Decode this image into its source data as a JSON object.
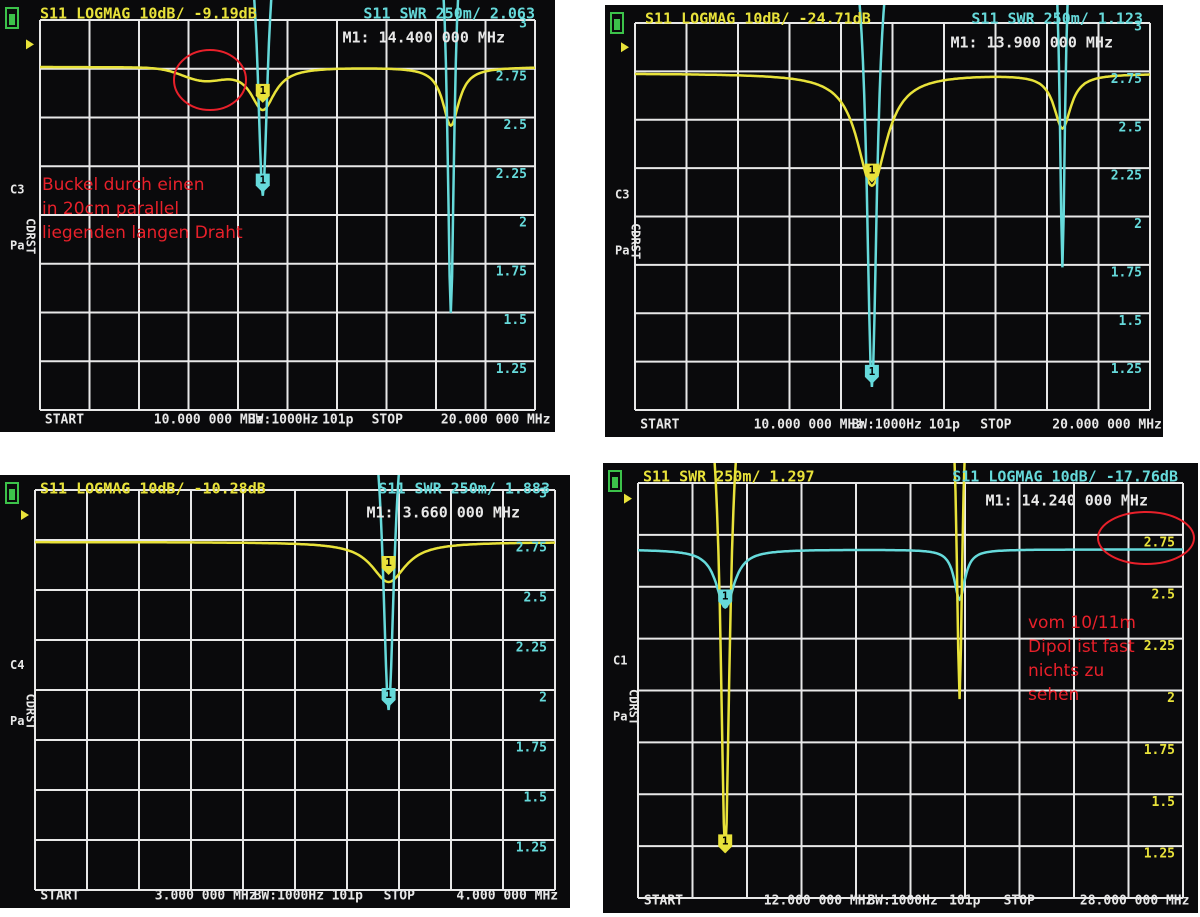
{
  "panels": [
    {
      "header_a": "S11 LOGMAG 10dB/ -9.19dB",
      "header_b": "S11 SWR 250m/ 2.063",
      "marker": "M1: 14.400 000 MHz",
      "scale_ticks": [
        "3",
        "2.75",
        "2.5",
        "2.25",
        "2",
        "1.75",
        "1.5",
        "1.25"
      ],
      "footer": [
        "START",
        "10.000 000 MHz",
        "BW:1000Hz",
        "101p",
        "STOP",
        "20.000 000 MHz"
      ],
      "side": [
        "C3",
        "CDRST",
        "Pa"
      ],
      "marker_tag": "1",
      "annotation": [
        "Buckel durch einen",
        "in 20cm parallel",
        "liegenden langen Draht"
      ]
    },
    {
      "header_a": "S11 LOGMAG 10dB/ -24.71dB",
      "header_b": "S11 SWR 250m/ 1.123",
      "marker": "M1: 13.900 000 MHz",
      "scale_ticks": [
        "3",
        "2.75",
        "2.5",
        "2.25",
        "2",
        "1.75",
        "1.5",
        "1.25"
      ],
      "footer": [
        "START",
        "10.000 000 MHz",
        "BW:1000Hz",
        "101p",
        "STOP",
        "20.000 000 MHz"
      ],
      "side": [
        "C3",
        "CDRST",
        "Pa"
      ],
      "marker_tag": "1"
    },
    {
      "header_a": "S11 LOGMAG 10dB/ -10.28dB",
      "header_b": "S11 SWR 250m/ 1.883",
      "marker": "M1: 3.660 000 MHz",
      "scale_ticks": [
        "3",
        "2.75",
        "2.5",
        "2.25",
        "2",
        "1.75",
        "1.5",
        "1.25"
      ],
      "footer": [
        "START",
        "3.000 000 MHz",
        "BW:1000Hz",
        "101p",
        "STOP",
        "4.000 000 MHz"
      ],
      "side": [
        "C4",
        "CDRST",
        "Pa"
      ],
      "marker_tag": "1"
    },
    {
      "header_a": "S11 SWR 250m/ 1.297",
      "header_b": "S11 LOGMAG 10dB/ -17.76dB",
      "marker": "M1: 14.240 000 MHz",
      "scale_ticks": [
        "2.75",
        "2.5",
        "2.25",
        "2",
        "1.75",
        "1.5",
        "1.25"
      ],
      "footer": [
        "START",
        "12.000 000 MHz",
        "BW:1000Hz",
        "101p",
        "STOP",
        "28.000 000 MHz"
      ],
      "side": [
        "C1",
        "CDRST",
        "Pa"
      ],
      "marker_tag": "1",
      "annotation": [
        "vom 10/11m",
        "Dipol ist fast",
        "nichts zu",
        "sehen"
      ]
    }
  ]
}
